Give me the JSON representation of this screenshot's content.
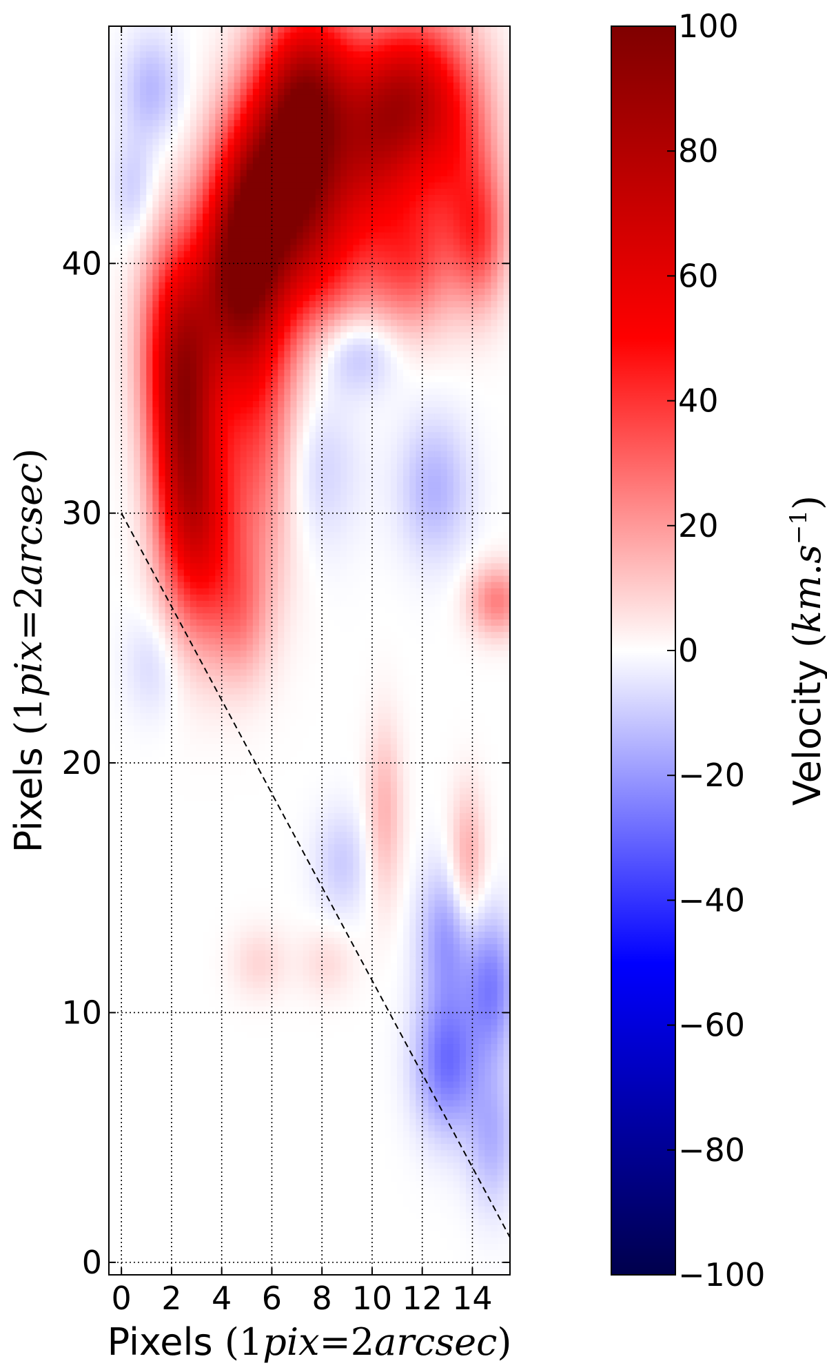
{
  "chart_data": {
    "type": "heatmap",
    "title": "",
    "xlabel": {
      "prefix": "Pixels",
      "open": "(",
      "num": "1",
      "var1": "pix",
      "eq": "=",
      "num2": "2",
      "var2": "arcsec",
      "close": ")"
    },
    "ylabel": {
      "prefix": "Pixels",
      "open": "(",
      "num": "1",
      "var1": "pix",
      "eq": "=",
      "num2": "2",
      "var2": "arcsec",
      "close": ")"
    },
    "xlim": [
      -0.5,
      15.5
    ],
    "ylim": [
      -0.5,
      49.5
    ],
    "x_ticks": [
      0,
      2,
      4,
      6,
      8,
      10,
      12,
      14
    ],
    "x_tick_labels": [
      "0",
      "2",
      "4",
      "6",
      "8",
      "10",
      "12",
      "14"
    ],
    "y_ticks": [
      0,
      10,
      20,
      30,
      40
    ],
    "y_tick_labels": [
      "0",
      "10",
      "20",
      "30",
      "40"
    ],
    "grid": true,
    "colormap": "seismic",
    "colorbar": {
      "label": {
        "prefix": "Velocity",
        "open": "(",
        "unit1": "km",
        "dot": ".",
        "unit2": "s",
        "exp": "−1",
        "close": ")"
      },
      "range": [
        -100,
        100
      ],
      "ticks": [
        -100,
        -80,
        -60,
        -40,
        -20,
        0,
        20,
        40,
        60,
        80,
        100
      ],
      "tick_labels": [
        "−100",
        "−80",
        "−60",
        "−40",
        "−20",
        "0",
        "20",
        "40",
        "60",
        "80",
        "100"
      ],
      "colors": [
        "#00004c",
        "#0000ff",
        "#ffffff",
        "#ff0000",
        "#7f0000"
      ]
    },
    "reference_line": {
      "style": "dashed",
      "color": "#000000",
      "points": [
        [
          0,
          30
        ],
        [
          15.5,
          1
        ]
      ]
    },
    "field_features": [
      {
        "x": 2.5,
        "y": 33,
        "v": 58,
        "sx": 0.9,
        "sy": 3.5
      },
      {
        "x": 3.2,
        "y": 29,
        "v": 42,
        "sx": 1.0,
        "sy": 3
      },
      {
        "x": 2.2,
        "y": 37,
        "v": 45,
        "sx": 1.0,
        "sy": 3
      },
      {
        "x": 4.5,
        "y": 39,
        "v": 62,
        "sx": 1.2,
        "sy": 3
      },
      {
        "x": 5.2,
        "y": 42,
        "v": 60,
        "sx": 1.1,
        "sy": 3
      },
      {
        "x": 6.8,
        "y": 44,
        "v": 58,
        "sx": 1.2,
        "sy": 3
      },
      {
        "x": 7.6,
        "y": 47,
        "v": 60,
        "sx": 1.3,
        "sy": 2.5
      },
      {
        "x": 8.0,
        "y": 41,
        "v": 42,
        "sx": 1.5,
        "sy": 3
      },
      {
        "x": 10.2,
        "y": 45,
        "v": 55,
        "sx": 1.3,
        "sy": 2.5
      },
      {
        "x": 11.5,
        "y": 47,
        "v": 45,
        "sx": 1.2,
        "sy": 2
      },
      {
        "x": 13.2,
        "y": 45,
        "v": 38,
        "sx": 1.2,
        "sy": 3
      },
      {
        "x": 14.3,
        "y": 41,
        "v": 30,
        "sx": 0.8,
        "sy": 2
      },
      {
        "x": 11.5,
        "y": 40,
        "v": 30,
        "sx": 1.2,
        "sy": 2
      },
      {
        "x": 5.5,
        "y": 33,
        "v": 32,
        "sx": 1.2,
        "sy": 4
      },
      {
        "x": 4.8,
        "y": 26,
        "v": 18,
        "sx": 0.8,
        "sy": 2
      },
      {
        "x": 15,
        "y": 26.5,
        "v": 25,
        "sx": 0.8,
        "sy": 1
      },
      {
        "x": 10.5,
        "y": 18,
        "v": 15,
        "sx": 0.5,
        "sy": 2.5
      },
      {
        "x": 13.8,
        "y": 16,
        "v": 18,
        "sx": 0.5,
        "sy": 2
      },
      {
        "x": 9.3,
        "y": 36.5,
        "v": -18,
        "sx": 1.2,
        "sy": 1.2
      },
      {
        "x": 7.5,
        "y": 32,
        "v": -12,
        "sx": 1.3,
        "sy": 2.5
      },
      {
        "x": 12.5,
        "y": 31,
        "v": -15,
        "sx": 1.0,
        "sy": 2
      },
      {
        "x": 13.0,
        "y": 8,
        "v": -28,
        "sx": 0.9,
        "sy": 2
      },
      {
        "x": 13.0,
        "y": 13,
        "v": -20,
        "sx": 0.8,
        "sy": 2
      },
      {
        "x": 14.8,
        "y": 11,
        "v": -24,
        "sx": 0.7,
        "sy": 2
      },
      {
        "x": 14.8,
        "y": 5,
        "v": -15,
        "sx": 0.7,
        "sy": 2
      },
      {
        "x": 1.2,
        "y": 47,
        "v": -14,
        "sx": 0.8,
        "sy": 1.5
      },
      {
        "x": 0.5,
        "y": 43,
        "v": -10,
        "sx": 0.6,
        "sy": 1.5
      },
      {
        "x": 8.8,
        "y": 16,
        "v": -10,
        "sx": 0.8,
        "sy": 1.5
      },
      {
        "x": 1.3,
        "y": 24,
        "v": -8,
        "sx": 0.8,
        "sy": 1.5
      },
      {
        "x": 5.5,
        "y": 12,
        "v": 8,
        "sx": 0.8,
        "sy": 1
      },
      {
        "x": 8.2,
        "y": 12,
        "v": 7,
        "sx": 0.8,
        "sy": 1
      }
    ]
  }
}
